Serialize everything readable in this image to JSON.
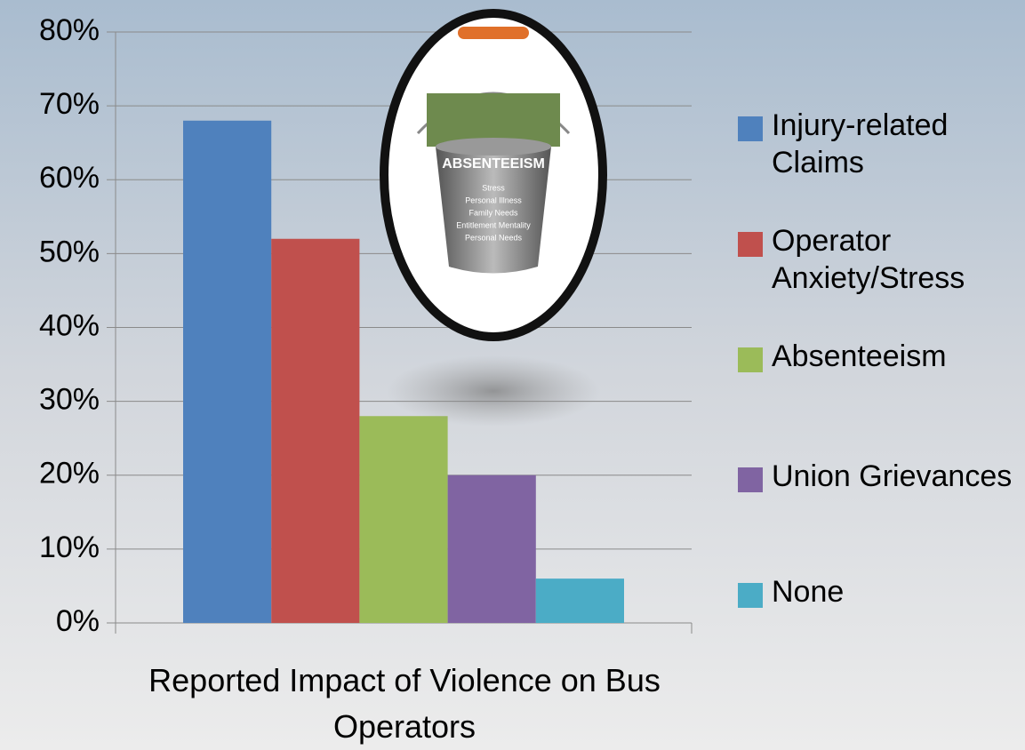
{
  "chart_data": {
    "type": "bar",
    "categories": [
      "Reported Impact of Violence on Bus Operators"
    ],
    "series": [
      {
        "name": "Injury-related Claims",
        "color": "#4f81bd",
        "values": [
          68
        ]
      },
      {
        "name": "Operator Anxiety/Stress",
        "color": "#c0504d",
        "values": [
          52
        ]
      },
      {
        "name": "Absenteeism",
        "color": "#9bbb59",
        "values": [
          28
        ]
      },
      {
        "name": "Union Grievances",
        "color": "#8064a2",
        "values": [
          20
        ]
      },
      {
        "name": "None",
        "color": "#4bacc6",
        "values": [
          6
        ]
      }
    ],
    "ylim": [
      0,
      80
    ],
    "yticks": [
      {
        "value": 0,
        "label": "0%"
      },
      {
        "value": 10,
        "label": "10%"
      },
      {
        "value": 20,
        "label": "20%"
      },
      {
        "value": 30,
        "label": "30%"
      },
      {
        "value": 40,
        "label": "40%"
      },
      {
        "value": 50,
        "label": "50%"
      },
      {
        "value": 60,
        "label": "60%"
      },
      {
        "value": 70,
        "label": "70%"
      },
      {
        "value": 80,
        "label": "80%"
      }
    ],
    "grid": true,
    "legend": "right",
    "annotations": [
      "ABSENTEEISM",
      "Stress",
      "Personal Illness",
      "Family Needs",
      "Entitlement Mentality",
      "Personal Needs"
    ]
  }
}
